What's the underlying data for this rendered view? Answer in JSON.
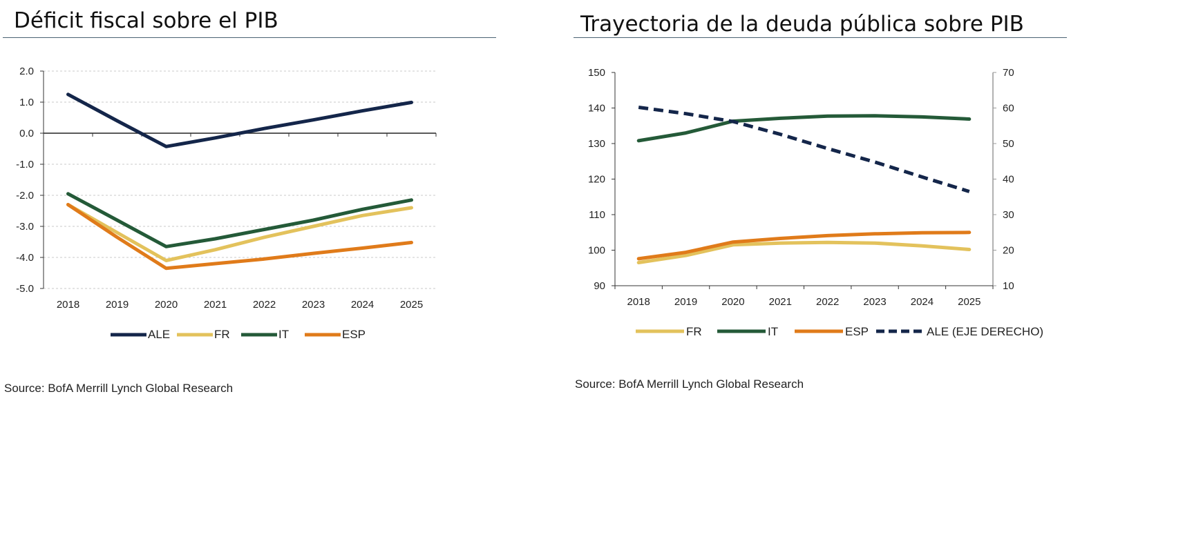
{
  "chart_data": [
    {
      "type": "line",
      "title": "Déficit fiscal sobre el PIB",
      "x": [
        "2018",
        "2019",
        "2020",
        "2021",
        "2022",
        "2023",
        "2024",
        "2025"
      ],
      "ylim": [
        -5.0,
        2.0
      ],
      "yticks": [
        "2.0",
        "1.0",
        "0.0",
        "-1.0",
        "-2.0",
        "-3.0",
        "-4.0",
        "-5.0"
      ],
      "ytick_values": [
        2,
        1,
        0,
        -1,
        -2,
        -3,
        -4,
        -5
      ],
      "grid": true,
      "legend_position": "bottom",
      "series": [
        {
          "name": "ALE",
          "color": "#14264a",
          "dashed": false,
          "values": [
            1.25,
            0.4,
            -0.43,
            -0.15,
            0.15,
            0.43,
            0.72,
            0.99
          ]
        },
        {
          "name": "FR",
          "color": "#e3c25c",
          "dashed": false,
          "values": [
            -2.3,
            -3.2,
            -4.1,
            -3.75,
            -3.35,
            -3.0,
            -2.65,
            -2.4
          ]
        },
        {
          "name": "IT",
          "color": "#245a38",
          "dashed": false,
          "values": [
            -1.95,
            -2.8,
            -3.65,
            -3.4,
            -3.1,
            -2.8,
            -2.45,
            -2.15
          ]
        },
        {
          "name": "ESP",
          "color": "#e07b1a",
          "dashed": false,
          "values": [
            -2.3,
            -3.35,
            -4.35,
            -4.2,
            -4.05,
            -3.87,
            -3.7,
            -3.52
          ]
        }
      ],
      "source": "Source: BofA Merrill Lynch Global Research"
    },
    {
      "type": "line",
      "title": "Trayectoria de la deuda pública sobre PIB",
      "x": [
        "2018",
        "2019",
        "2020",
        "2021",
        "2022",
        "2023",
        "2024",
        "2025"
      ],
      "ylim": [
        90,
        150
      ],
      "yticks": [
        "150",
        "140",
        "130",
        "120",
        "110",
        "100",
        "90"
      ],
      "ytick_values": [
        150,
        140,
        130,
        120,
        110,
        100,
        90
      ],
      "y2lim": [
        10,
        70
      ],
      "y2ticks": [
        "70",
        "60",
        "50",
        "40",
        "30",
        "20",
        "10"
      ],
      "y2tick_values": [
        70,
        60,
        50,
        40,
        30,
        20,
        10
      ],
      "grid": false,
      "legend_position": "bottom",
      "series": [
        {
          "name": "FR",
          "axis": "left",
          "color": "#e3c25c",
          "dashed": false,
          "values": [
            96.5,
            98.5,
            101.5,
            102.0,
            102.2,
            102.0,
            101.2,
            100.2
          ]
        },
        {
          "name": "IT",
          "axis": "left",
          "color": "#245a38",
          "dashed": false,
          "values": [
            130.8,
            133.0,
            136.3,
            137.1,
            137.7,
            137.8,
            137.5,
            136.9
          ]
        },
        {
          "name": "ESP",
          "axis": "left",
          "color": "#e07b1a",
          "dashed": false,
          "values": [
            97.6,
            99.4,
            102.3,
            103.3,
            104.1,
            104.6,
            104.9,
            105.0
          ]
        },
        {
          "name": "ALE (EJE DERECHO)",
          "axis": "right",
          "color": "#14264a",
          "dashed": true,
          "values": [
            60.2,
            58.4,
            56.2,
            52.6,
            48.6,
            44.8,
            40.6,
            36.5
          ]
        }
      ],
      "source": "Source: BofA Merrill Lynch Global Research"
    }
  ]
}
